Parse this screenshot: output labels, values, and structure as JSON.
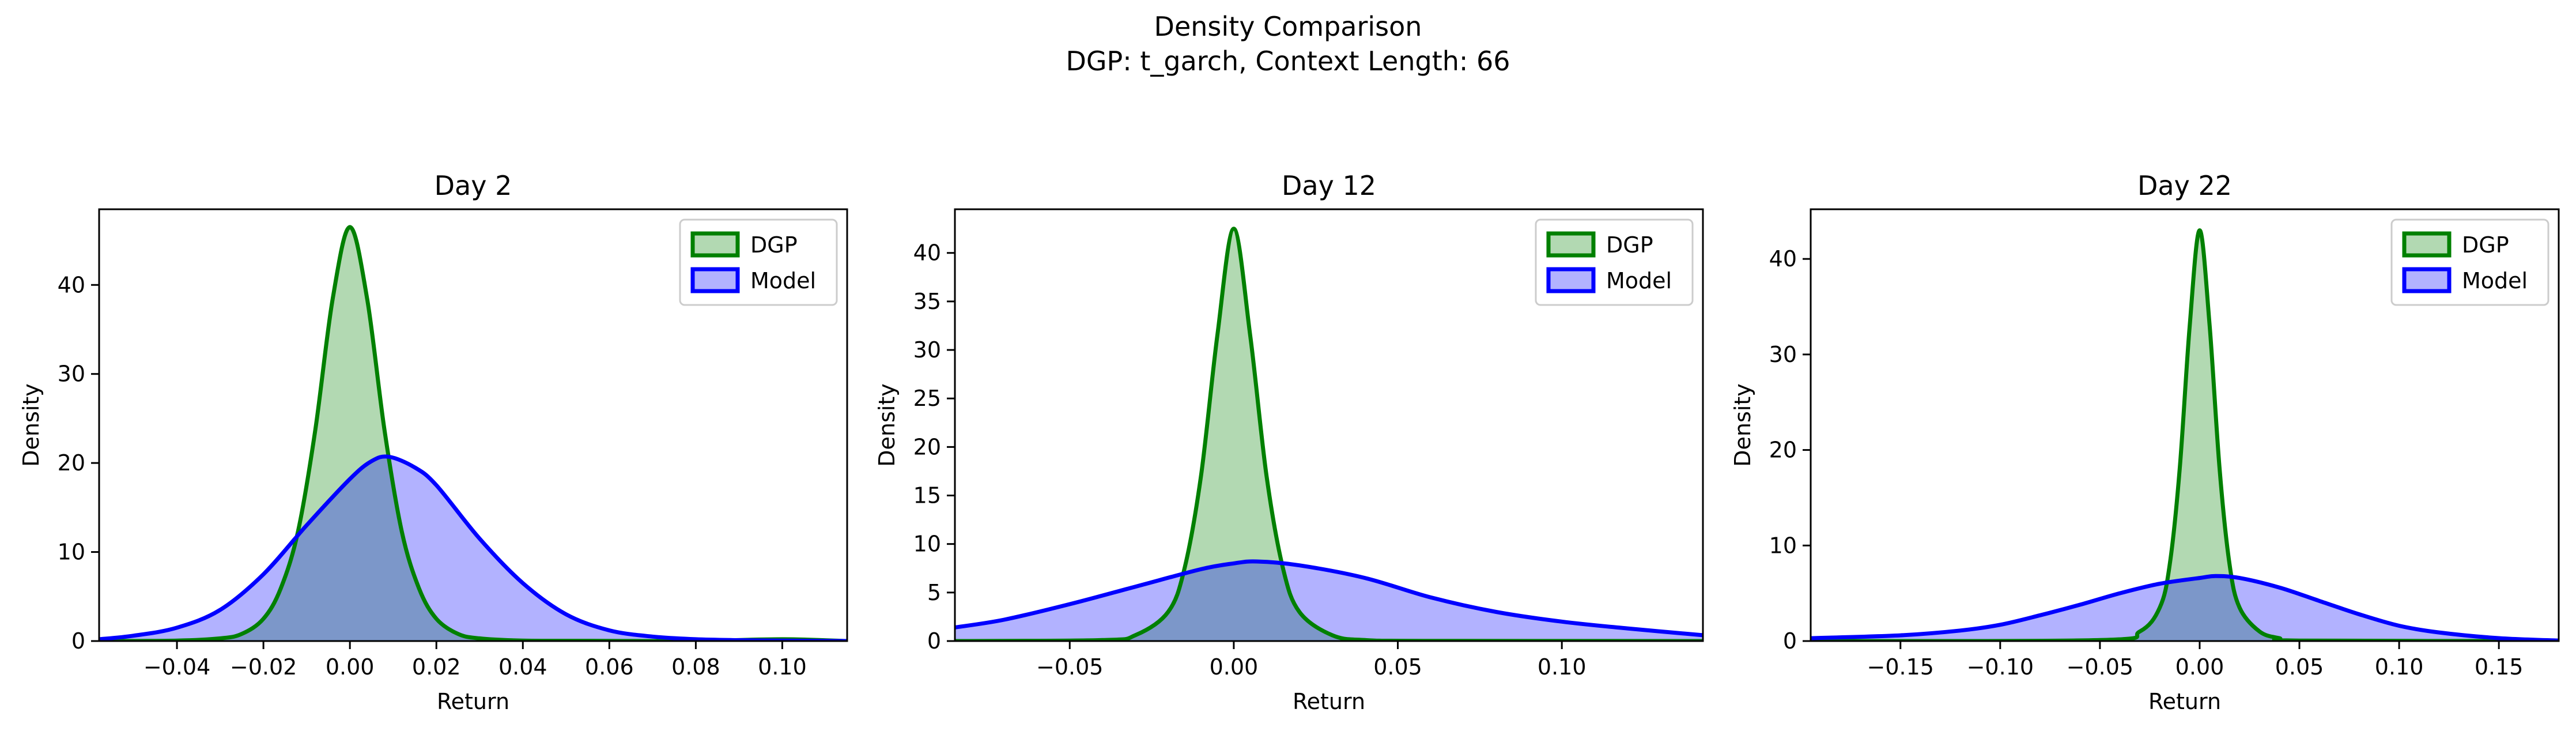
{
  "figure": {
    "title": "Density Comparison",
    "subtitle": "DGP: t_garch, Context Length: 66"
  },
  "colors": {
    "dgp_line": "#008000",
    "dgp_fill": "#008000",
    "model_line": "#0000ff",
    "model_fill": "#0000ff",
    "axes": "#000000"
  },
  "chart_data": [
    {
      "type": "area",
      "title": "Day 2",
      "xlabel": "Return",
      "ylabel": "Density",
      "xlim": [
        -0.058,
        0.115
      ],
      "ylim": [
        0,
        48.5
      ],
      "xticks": [
        -0.04,
        -0.02,
        0.0,
        0.02,
        0.04,
        0.06,
        0.08,
        0.1
      ],
      "xtick_labels": [
        "−0.04",
        "−0.02",
        "0.00",
        "0.02",
        "0.04",
        "0.06",
        "0.08",
        "0.10"
      ],
      "yticks": [
        0,
        10,
        20,
        30,
        40
      ],
      "ytick_labels": [
        "0",
        "10",
        "20",
        "30",
        "40"
      ],
      "legend": "top-right",
      "grid": false,
      "series": [
        {
          "name": "DGP",
          "color": "#008000",
          "x": [
            -0.058,
            -0.04,
            -0.03,
            -0.025,
            -0.02,
            -0.016,
            -0.012,
            -0.008,
            -0.004,
            0.0,
            0.004,
            0.008,
            0.012,
            0.016,
            0.02,
            0.025,
            0.03,
            0.04,
            0.06,
            0.08,
            0.1,
            0.115
          ],
          "y": [
            0,
            0.05,
            0.3,
            0.8,
            2.5,
            5.9,
            12.3,
            23.7,
            38.4,
            46.5,
            38.4,
            23.7,
            12.3,
            5.9,
            2.5,
            0.8,
            0.3,
            0.05,
            0.02,
            0.01,
            0.2,
            0
          ]
        },
        {
          "name": "Model",
          "color": "#0000ff",
          "x": [
            -0.058,
            -0.05,
            -0.04,
            -0.03,
            -0.02,
            -0.01,
            0.0,
            0.005,
            0.009,
            0.015,
            0.02,
            0.03,
            0.04,
            0.05,
            0.06,
            0.07,
            0.08,
            0.09,
            0.1,
            0.115
          ],
          "y": [
            0.2,
            0.6,
            1.5,
            3.5,
            7.5,
            13,
            18.2,
            20.2,
            20.7,
            19.5,
            17.5,
            11.5,
            6.5,
            3,
            1.2,
            0.5,
            0.2,
            0.1,
            0.05,
            0
          ]
        }
      ]
    },
    {
      "type": "area",
      "title": "Day 12",
      "xlabel": "Return",
      "ylabel": "Density",
      "xlim": [
        -0.085,
        0.143
      ],
      "ylim": [
        0,
        44.5
      ],
      "xticks": [
        -0.05,
        0.0,
        0.05,
        0.1
      ],
      "xtick_labels": [
        "−0.05",
        "0.00",
        "0.05",
        "0.10"
      ],
      "yticks": [
        0,
        5,
        10,
        15,
        20,
        25,
        30,
        35,
        40
      ],
      "ytick_labels": [
        "0",
        "5",
        "10",
        "15",
        "20",
        "25",
        "30",
        "35",
        "40"
      ],
      "legend": "top-right",
      "grid": false,
      "series": [
        {
          "name": "DGP",
          "color": "#008000",
          "x": [
            -0.085,
            -0.04,
            -0.03,
            -0.02,
            -0.015,
            -0.01,
            -0.005,
            0.0,
            0.005,
            0.01,
            0.015,
            0.02,
            0.03,
            0.04,
            0.06,
            0.143
          ],
          "y": [
            0,
            0.1,
            0.6,
            3,
            7.5,
            17,
            31.5,
            42.5,
            31.5,
            17,
            7.5,
            3,
            0.6,
            0.1,
            0.02,
            0
          ]
        },
        {
          "name": "Model",
          "color": "#0000ff",
          "x": [
            -0.085,
            -0.07,
            -0.05,
            -0.03,
            -0.01,
            0.0,
            0.007,
            0.02,
            0.04,
            0.06,
            0.08,
            0.1,
            0.12,
            0.143
          ],
          "y": [
            1.4,
            2.2,
            3.8,
            5.6,
            7.4,
            8,
            8.2,
            7.8,
            6.5,
            4.5,
            3,
            2,
            1.3,
            0.6
          ]
        }
      ]
    },
    {
      "type": "area",
      "title": "Day 22",
      "xlabel": "Return",
      "ylabel": "Density",
      "xlim": [
        -0.195,
        0.18
      ],
      "ylim": [
        0,
        45.2
      ],
      "xticks": [
        -0.15,
        -0.1,
        -0.05,
        0.0,
        0.05,
        0.1,
        0.15
      ],
      "xtick_labels": [
        "−0.15",
        "−0.10",
        "−0.05",
        "0.00",
        "0.05",
        "0.10",
        "0.15"
      ],
      "yticks": [
        0,
        10,
        20,
        30,
        40
      ],
      "ytick_labels": [
        "0",
        "10",
        "20",
        "30",
        "40"
      ],
      "legend": "top-right",
      "grid": false,
      "series": [
        {
          "name": "DGP",
          "color": "#008000",
          "x": [
            -0.195,
            -0.05,
            -0.03,
            -0.02,
            -0.015,
            -0.01,
            -0.005,
            0.0,
            0.005,
            0.01,
            0.015,
            0.02,
            0.03,
            0.04,
            0.05,
            0.18
          ],
          "y": [
            0,
            0.1,
            1,
            3.5,
            8,
            18,
            33,
            43,
            33,
            18,
            8,
            3.5,
            1,
            0.3,
            0.05,
            0
          ]
        },
        {
          "name": "Model",
          "color": "#0000ff",
          "x": [
            -0.195,
            -0.15,
            -0.12,
            -0.1,
            -0.08,
            -0.06,
            -0.04,
            -0.02,
            0.0,
            0.008,
            0.02,
            0.04,
            0.06,
            0.08,
            0.1,
            0.12,
            0.15,
            0.18
          ],
          "y": [
            0.3,
            0.6,
            1.1,
            1.7,
            2.7,
            3.8,
            5,
            6,
            6.6,
            6.8,
            6.6,
            5.6,
            4.2,
            2.8,
            1.6,
            0.9,
            0.3,
            0.05
          ]
        }
      ]
    }
  ]
}
